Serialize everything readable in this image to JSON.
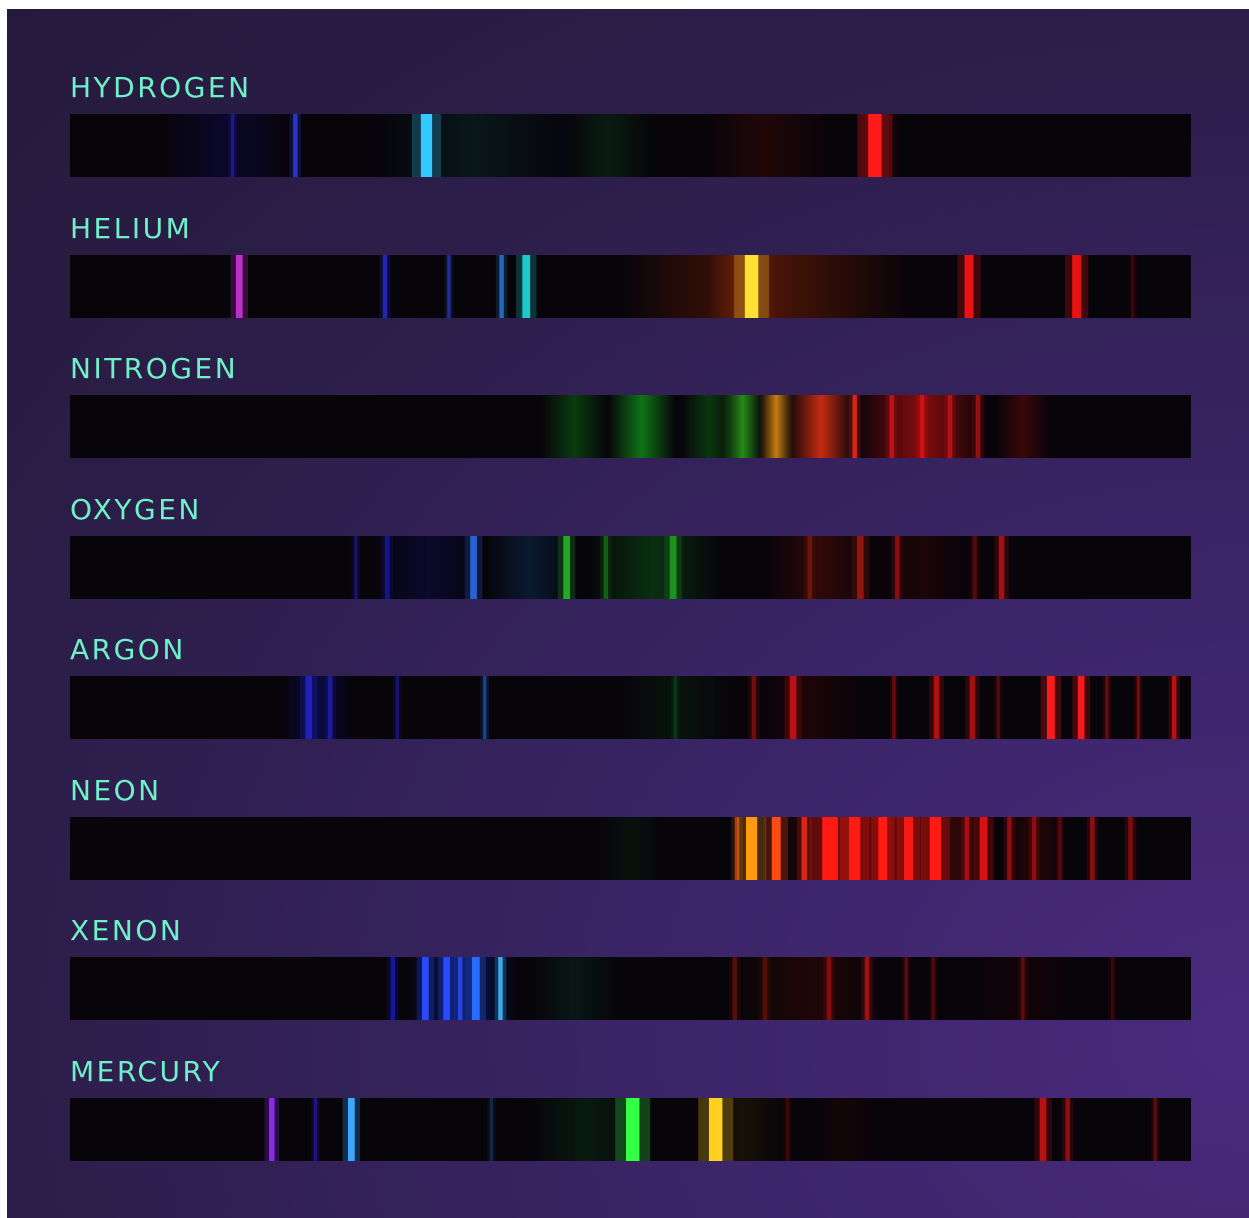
{
  "elements": [
    {
      "name": "HYDROGEN",
      "bands": [
        {
          "center": 0.14,
          "width": 0.12,
          "color": "#12106a",
          "opacity": 0.35
        },
        {
          "center": 0.36,
          "width": 0.18,
          "color": "#0a3a3a",
          "opacity": 0.35
        },
        {
          "center": 0.48,
          "width": 0.08,
          "color": "#0a3a18",
          "opacity": 0.45
        },
        {
          "center": 0.62,
          "width": 0.12,
          "color": "#3a0a06",
          "opacity": 0.5
        },
        {
          "center": 0.72,
          "width": 0.04,
          "color": "#6a0a08",
          "opacity": 0.6
        }
      ],
      "lines": [
        {
          "pos": 0.145,
          "width": 0.003,
          "color": "#2222aa",
          "opacity": 0.7
        },
        {
          "pos": 0.201,
          "width": 0.004,
          "color": "#2a3ad8",
          "opacity": 0.9
        },
        {
          "pos": 0.318,
          "width": 0.01,
          "color": "#33c8ff",
          "opacity": 1.0
        },
        {
          "pos": 0.718,
          "width": 0.012,
          "color": "#ff1a1a",
          "opacity": 1.0
        }
      ]
    },
    {
      "name": "HELIUM",
      "bands": [
        {
          "center": 0.62,
          "width": 0.26,
          "color": "#5a1806",
          "opacity": 0.85
        },
        {
          "center": 0.6,
          "width": 0.06,
          "color": "#8a2a08",
          "opacity": 0.6
        }
      ],
      "lines": [
        {
          "pos": 0.151,
          "width": 0.006,
          "color": "#c030c8",
          "opacity": 1.0
        },
        {
          "pos": 0.281,
          "width": 0.004,
          "color": "#2a2ac8",
          "opacity": 0.85
        },
        {
          "pos": 0.338,
          "width": 0.003,
          "color": "#2a3ab8",
          "opacity": 0.75
        },
        {
          "pos": 0.385,
          "width": 0.004,
          "color": "#2a7ad8",
          "opacity": 0.8
        },
        {
          "pos": 0.407,
          "width": 0.007,
          "color": "#1ec8c8",
          "opacity": 1.0
        },
        {
          "pos": 0.608,
          "width": 0.012,
          "color": "#ffe033",
          "opacity": 1.0
        },
        {
          "pos": 0.802,
          "width": 0.008,
          "color": "#e81414",
          "opacity": 1.0
        },
        {
          "pos": 0.898,
          "width": 0.008,
          "color": "#e81414",
          "opacity": 1.0
        },
        {
          "pos": 0.948,
          "width": 0.003,
          "color": "#5a0a0a",
          "opacity": 0.6
        }
      ]
    },
    {
      "name": "NITROGEN",
      "bands": [
        {
          "center": 0.45,
          "width": 0.06,
          "color": "#0a4a10",
          "opacity": 0.8
        },
        {
          "center": 0.51,
          "width": 0.06,
          "color": "#109018",
          "opacity": 0.8
        },
        {
          "center": 0.57,
          "width": 0.05,
          "color": "#0a5a12",
          "opacity": 0.6
        },
        {
          "center": 0.6,
          "width": 0.035,
          "color": "#2a9a18",
          "opacity": 0.9
        },
        {
          "center": 0.63,
          "width": 0.03,
          "color": "#d88a10",
          "opacity": 0.9
        },
        {
          "center": 0.67,
          "width": 0.06,
          "color": "#d83010",
          "opacity": 0.9
        },
        {
          "center": 0.76,
          "width": 0.12,
          "color": "#9a0e0e",
          "opacity": 0.85
        },
        {
          "center": 0.85,
          "width": 0.05,
          "color": "#5a0a0a",
          "opacity": 0.6
        }
      ],
      "lines": [
        {
          "pos": 0.7,
          "width": 0.004,
          "color": "#ff2a1a",
          "opacity": 0.8
        },
        {
          "pos": 0.733,
          "width": 0.004,
          "color": "#e81414",
          "opacity": 0.7
        },
        {
          "pos": 0.76,
          "width": 0.004,
          "color": "#e81414",
          "opacity": 0.7
        },
        {
          "pos": 0.785,
          "width": 0.004,
          "color": "#d81414",
          "opacity": 0.7
        },
        {
          "pos": 0.81,
          "width": 0.004,
          "color": "#d81414",
          "opacity": 0.6
        }
      ]
    },
    {
      "name": "OXYGEN",
      "bands": [
        {
          "center": 0.32,
          "width": 0.1,
          "color": "#0c0c3a",
          "opacity": 0.7
        },
        {
          "center": 0.41,
          "width": 0.08,
          "color": "#0a2a4a",
          "opacity": 0.6
        },
        {
          "center": 0.52,
          "width": 0.12,
          "color": "#0a3a12",
          "opacity": 0.8
        },
        {
          "center": 0.67,
          "width": 0.1,
          "color": "#3a0a08",
          "opacity": 0.8
        },
        {
          "center": 0.76,
          "width": 0.08,
          "color": "#2a0606",
          "opacity": 0.6
        }
      ],
      "lines": [
        {
          "pos": 0.255,
          "width": 0.003,
          "color": "#1a1a8a",
          "opacity": 0.7
        },
        {
          "pos": 0.283,
          "width": 0.004,
          "color": "#1a1ab0",
          "opacity": 0.7
        },
        {
          "pos": 0.36,
          "width": 0.006,
          "color": "#2a6ae0",
          "opacity": 0.9
        },
        {
          "pos": 0.443,
          "width": 0.006,
          "color": "#22b822",
          "opacity": 0.9
        },
        {
          "pos": 0.478,
          "width": 0.004,
          "color": "#188a18",
          "opacity": 0.6
        },
        {
          "pos": 0.538,
          "width": 0.006,
          "color": "#22a822",
          "opacity": 0.8
        },
        {
          "pos": 0.66,
          "width": 0.004,
          "color": "#8a1a0a",
          "opacity": 0.7
        },
        {
          "pos": 0.705,
          "width": 0.006,
          "color": "#aa1a10",
          "opacity": 0.8
        },
        {
          "pos": 0.738,
          "width": 0.004,
          "color": "#a01010",
          "opacity": 0.8
        },
        {
          "pos": 0.807,
          "width": 0.004,
          "color": "#7a0e0e",
          "opacity": 0.6
        },
        {
          "pos": 0.831,
          "width": 0.005,
          "color": "#b01414",
          "opacity": 0.9
        }
      ]
    },
    {
      "name": "ARGON",
      "bands": [
        {
          "center": 0.22,
          "width": 0.06,
          "color": "#0c0c50",
          "opacity": 0.8
        },
        {
          "center": 0.54,
          "width": 0.1,
          "color": "#0a2410",
          "opacity": 0.5
        },
        {
          "center": 0.66,
          "width": 0.1,
          "color": "#2a0606",
          "opacity": 0.6
        }
      ],
      "lines": [
        {
          "pos": 0.213,
          "width": 0.006,
          "color": "#2424c8",
          "opacity": 0.9
        },
        {
          "pos": 0.232,
          "width": 0.004,
          "color": "#2020b0",
          "opacity": 0.8
        },
        {
          "pos": 0.292,
          "width": 0.003,
          "color": "#1a1a8a",
          "opacity": 0.7
        },
        {
          "pos": 0.37,
          "width": 0.003,
          "color": "#1a5ab8",
          "opacity": 0.7
        },
        {
          "pos": 0.54,
          "width": 0.003,
          "color": "#0a4a1a",
          "opacity": 0.6
        },
        {
          "pos": 0.61,
          "width": 0.004,
          "color": "#8a0e0e",
          "opacity": 0.8
        },
        {
          "pos": 0.645,
          "width": 0.006,
          "color": "#c81414",
          "opacity": 0.9
        },
        {
          "pos": 0.735,
          "width": 0.003,
          "color": "#8a0e0e",
          "opacity": 0.7
        },
        {
          "pos": 0.773,
          "width": 0.005,
          "color": "#c01212",
          "opacity": 0.9
        },
        {
          "pos": 0.805,
          "width": 0.005,
          "color": "#b01212",
          "opacity": 0.9
        },
        {
          "pos": 0.828,
          "width": 0.003,
          "color": "#7a0e0e",
          "opacity": 0.6
        },
        {
          "pos": 0.875,
          "width": 0.007,
          "color": "#ff1a1a",
          "opacity": 1.0
        },
        {
          "pos": 0.902,
          "width": 0.006,
          "color": "#ff1a1a",
          "opacity": 0.95
        },
        {
          "pos": 0.925,
          "width": 0.003,
          "color": "#8a0e0e",
          "opacity": 0.7
        },
        {
          "pos": 0.953,
          "width": 0.003,
          "color": "#9a0e0e",
          "opacity": 0.7
        },
        {
          "pos": 0.985,
          "width": 0.004,
          "color": "#c81212",
          "opacity": 0.9
        }
      ]
    },
    {
      "name": "NEON",
      "bands": [
        {
          "center": 0.5,
          "width": 0.06,
          "color": "#0a2410",
          "opacity": 0.4
        },
        {
          "center": 0.73,
          "width": 0.2,
          "color": "#7a0c08",
          "opacity": 0.85
        },
        {
          "center": 0.86,
          "width": 0.06,
          "color": "#3a0606",
          "opacity": 0.6
        }
      ],
      "lines": [
        {
          "pos": 0.595,
          "width": 0.004,
          "color": "#c84a10",
          "opacity": 0.8
        },
        {
          "pos": 0.608,
          "width": 0.01,
          "color": "#ff9a10",
          "opacity": 1.0
        },
        {
          "pos": 0.63,
          "width": 0.008,
          "color": "#ff4a14",
          "opacity": 1.0
        },
        {
          "pos": 0.655,
          "width": 0.005,
          "color": "#e82a14",
          "opacity": 0.9
        },
        {
          "pos": 0.678,
          "width": 0.014,
          "color": "#ff1a14",
          "opacity": 1.0
        },
        {
          "pos": 0.7,
          "width": 0.01,
          "color": "#ff1a14",
          "opacity": 1.0
        },
        {
          "pos": 0.725,
          "width": 0.008,
          "color": "#ff1a14",
          "opacity": 1.0
        },
        {
          "pos": 0.748,
          "width": 0.008,
          "color": "#ff1a14",
          "opacity": 0.95
        },
        {
          "pos": 0.772,
          "width": 0.01,
          "color": "#ff1a14",
          "opacity": 1.0
        },
        {
          "pos": 0.8,
          "width": 0.004,
          "color": "#c01212",
          "opacity": 0.8
        },
        {
          "pos": 0.815,
          "width": 0.007,
          "color": "#e81414",
          "opacity": 0.9
        },
        {
          "pos": 0.838,
          "width": 0.004,
          "color": "#aa1010",
          "opacity": 0.8
        },
        {
          "pos": 0.86,
          "width": 0.004,
          "color": "#a01010",
          "opacity": 0.8
        },
        {
          "pos": 0.883,
          "width": 0.003,
          "color": "#700c0c",
          "opacity": 0.7
        },
        {
          "pos": 0.912,
          "width": 0.004,
          "color": "#aa1010",
          "opacity": 0.8
        },
        {
          "pos": 0.946,
          "width": 0.004,
          "color": "#9a0e0e",
          "opacity": 0.8
        }
      ]
    },
    {
      "name": "XENON",
      "bands": [
        {
          "center": 0.35,
          "width": 0.1,
          "color": "#0a1a6a",
          "opacity": 0.8
        },
        {
          "center": 0.45,
          "width": 0.08,
          "color": "#0a2a22",
          "opacity": 0.5
        },
        {
          "center": 0.66,
          "width": 0.14,
          "color": "#2a0806",
          "opacity": 0.7
        },
        {
          "center": 0.85,
          "width": 0.1,
          "color": "#1e0505",
          "opacity": 0.5
        }
      ],
      "lines": [
        {
          "pos": 0.288,
          "width": 0.004,
          "color": "#1a1ab8",
          "opacity": 0.8
        },
        {
          "pos": 0.317,
          "width": 0.006,
          "color": "#2a4aff",
          "opacity": 1.0
        },
        {
          "pos": 0.336,
          "width": 0.006,
          "color": "#2a4aff",
          "opacity": 1.0
        },
        {
          "pos": 0.348,
          "width": 0.004,
          "color": "#2a4ae8",
          "opacity": 0.9
        },
        {
          "pos": 0.362,
          "width": 0.007,
          "color": "#2a6aff",
          "opacity": 1.0
        },
        {
          "pos": 0.384,
          "width": 0.004,
          "color": "#3aaae8",
          "opacity": 1.0
        },
        {
          "pos": 0.593,
          "width": 0.004,
          "color": "#6a1408",
          "opacity": 0.7
        },
        {
          "pos": 0.62,
          "width": 0.004,
          "color": "#6a1408",
          "opacity": 0.7
        },
        {
          "pos": 0.677,
          "width": 0.004,
          "color": "#9a0e0e",
          "opacity": 0.8
        },
        {
          "pos": 0.711,
          "width": 0.004,
          "color": "#b01212",
          "opacity": 0.9
        },
        {
          "pos": 0.746,
          "width": 0.003,
          "color": "#7a0e0e",
          "opacity": 0.7
        },
        {
          "pos": 0.77,
          "width": 0.003,
          "color": "#7a0e0e",
          "opacity": 0.6
        },
        {
          "pos": 0.85,
          "width": 0.003,
          "color": "#7a0e0e",
          "opacity": 0.7
        },
        {
          "pos": 0.93,
          "width": 0.003,
          "color": "#5a0a0a",
          "opacity": 0.6
        }
      ]
    },
    {
      "name": "MERCURY",
      "bands": [
        {
          "center": 0.46,
          "width": 0.1,
          "color": "#0a2a14",
          "opacity": 0.6
        },
        {
          "center": 0.6,
          "width": 0.08,
          "color": "#241a06",
          "opacity": 0.6
        },
        {
          "center": 0.69,
          "width": 0.06,
          "color": "#200606",
          "opacity": 0.5
        }
      ],
      "lines": [
        {
          "pos": 0.18,
          "width": 0.005,
          "color": "#8a2ae8",
          "opacity": 1.0
        },
        {
          "pos": 0.219,
          "width": 0.003,
          "color": "#2a1aa8",
          "opacity": 0.7
        },
        {
          "pos": 0.251,
          "width": 0.006,
          "color": "#3aa8ff",
          "opacity": 1.0
        },
        {
          "pos": 0.376,
          "width": 0.003,
          "color": "#1a3a6a",
          "opacity": 0.6
        },
        {
          "pos": 0.502,
          "width": 0.012,
          "color": "#33ff44",
          "opacity": 1.0
        },
        {
          "pos": 0.576,
          "width": 0.012,
          "color": "#ffd020",
          "opacity": 1.0
        },
        {
          "pos": 0.64,
          "width": 0.003,
          "color": "#5a0a0a",
          "opacity": 0.6
        },
        {
          "pos": 0.868,
          "width": 0.006,
          "color": "#c81212",
          "opacity": 0.9
        },
        {
          "pos": 0.89,
          "width": 0.004,
          "color": "#aa1010",
          "opacity": 0.8
        },
        {
          "pos": 0.968,
          "width": 0.003,
          "color": "#7a0e0e",
          "opacity": 0.7
        }
      ]
    }
  ]
}
